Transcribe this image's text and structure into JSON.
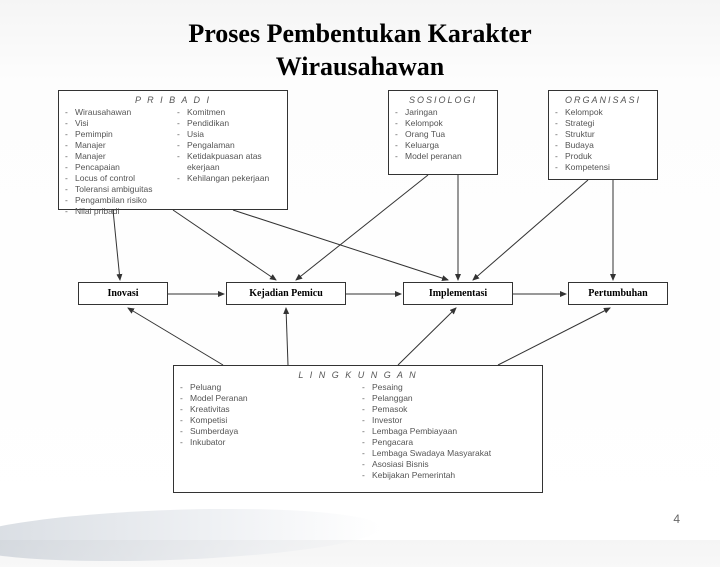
{
  "title_line1": "Proses Pembentukan Karakter",
  "title_line2": "Wirausahawan",
  "page_number": "4",
  "boxes": {
    "pribadi": {
      "title": "P R I B A D I",
      "col1": [
        "Wirausahawan",
        "Visi",
        "Pemimpin",
        "Manajer",
        "Manajer",
        "Pencapaian",
        "Locus of control",
        "Toleransi ambiguitas",
        "Pengambilan risiko",
        "Nilai pribadi"
      ],
      "col2": [
        "Komitmen",
        "Pendidikan",
        "Usia",
        "Pengalaman",
        "Ketidakpuasan atas ekerjaan",
        "Kehilangan pekerjaan"
      ]
    },
    "sosiologi": {
      "title": "SOSIOLOGI",
      "items": [
        "Jaringan",
        "Kelompok",
        "Orang Tua",
        "Keluarga",
        "Model peranan"
      ]
    },
    "organisasi": {
      "title": "ORGANISASI",
      "items": [
        "Kelompok",
        "Strategi",
        "Struktur",
        "Budaya",
        "Produk",
        "Kompetensi"
      ]
    },
    "lingkungan": {
      "title": "L I N G K U N G A N",
      "col1": [
        "Peluang",
        "Model Peranan",
        "Kreativitas",
        "Kompetisi",
        "Sumberdaya",
        "Inkubator"
      ],
      "col2": [
        "Pesaing",
        "Pelanggan",
        "Pemasok",
        "Investor",
        "Lembaga Pembiayaan",
        "Pengacara",
        "Lembaga Swadaya Masyarakat",
        "Asosiasi Bisnis",
        "Kebijakan Pemerintah"
      ]
    }
  },
  "stages": {
    "inovasi": "Inovasi",
    "pemicu": "Kejadian Pemicu",
    "implementasi": "Implementasi",
    "pertumbuhan": "Pertumbuhan"
  },
  "style": {
    "box_border": "#333333",
    "text_color": "#555555",
    "stage_font_weight": "bold",
    "background": "#ffffff"
  }
}
